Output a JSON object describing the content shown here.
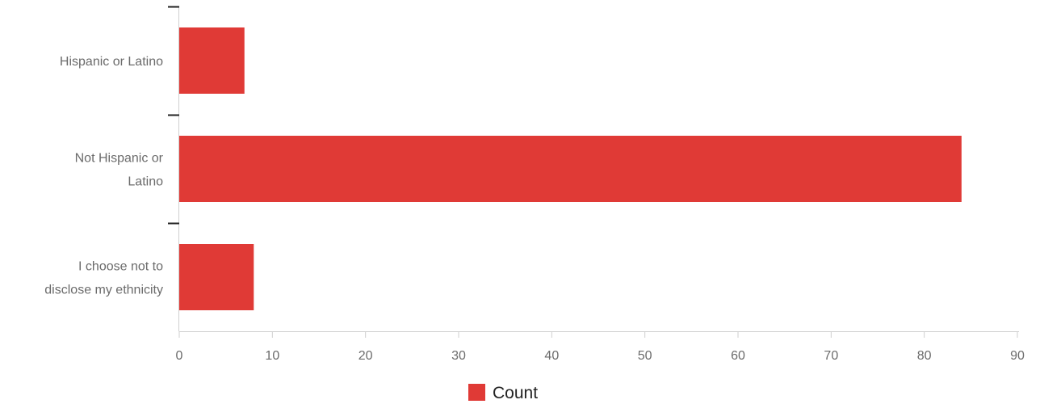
{
  "chart_data": {
    "type": "bar",
    "orientation": "horizontal",
    "categories": [
      [
        "Hispanic or Latino"
      ],
      [
        "Not Hispanic or",
        "Latino"
      ],
      [
        "I choose not to",
        "disclose my ethnicity"
      ]
    ],
    "series": [
      {
        "name": "Count",
        "color": "#e03a36",
        "values": [
          7,
          84,
          8
        ]
      }
    ],
    "x_ticks": [
      "0",
      "10",
      "20",
      "30",
      "40",
      "50",
      "60",
      "70",
      "80",
      "90"
    ],
    "xlim": [
      0,
      90
    ],
    "grid": false,
    "legend": {
      "position": "bottom-center",
      "label": "Count"
    },
    "title": "",
    "xlabel": "",
    "ylabel": ""
  }
}
